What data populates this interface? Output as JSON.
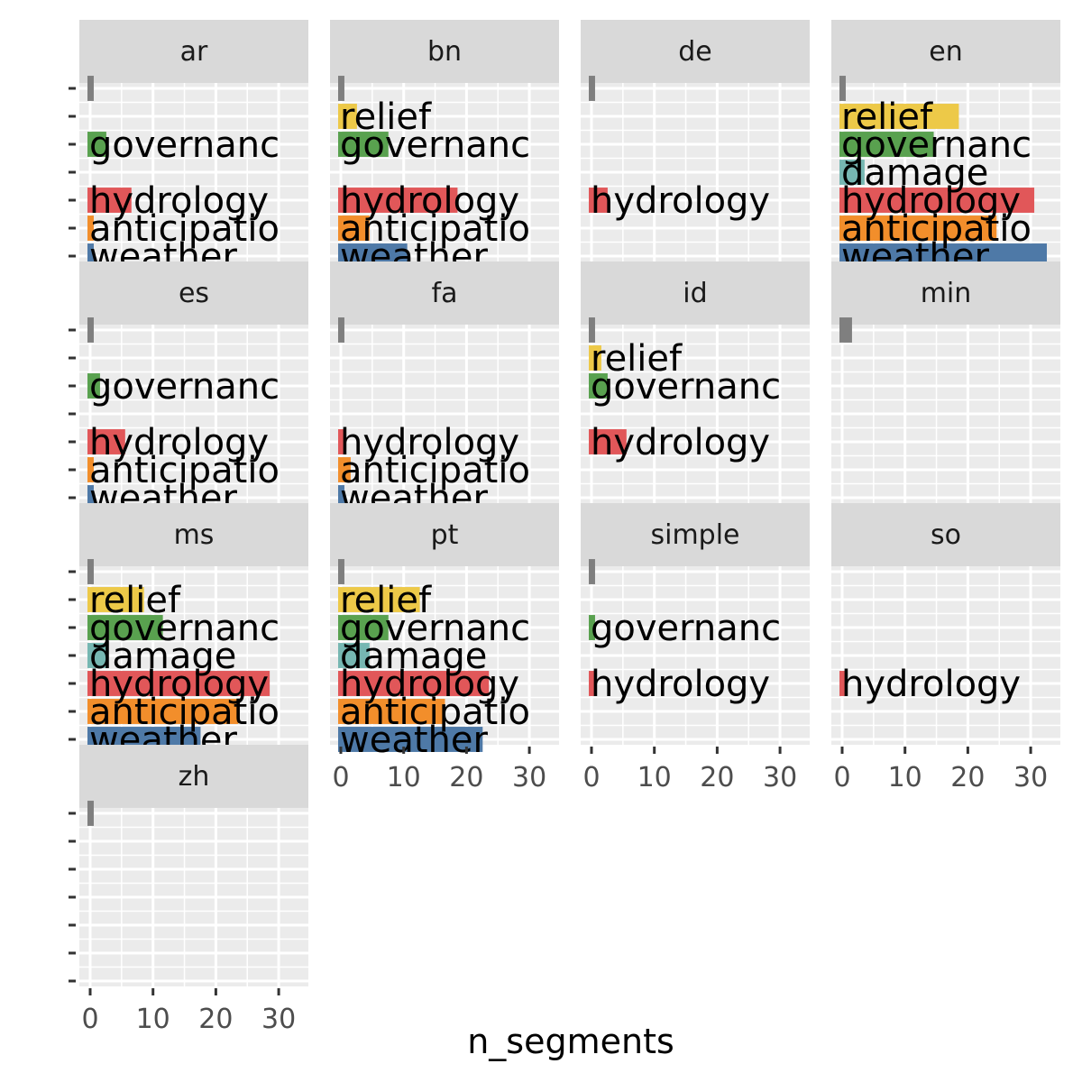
{
  "chart_data": {
    "type": "bar",
    "orientation": "horizontal",
    "facet_wrap": "language",
    "xlabel": "n_segments",
    "ylabel": "",
    "xlim": [
      0,
      35
    ],
    "x_ticks": [
      0,
      10,
      20,
      30
    ],
    "y_levels": [
      "weather",
      "anticipatio",
      "hydrology",
      "damage",
      "governanc",
      "relief",
      "NA"
    ],
    "colors": {
      "weather": "#4e79a7",
      "anticipatio": "#f28e2b",
      "hydrology": "#e15759",
      "damage": "#76b7b2",
      "governanc": "#59a14f",
      "relief": "#edc948",
      "NA": "#7f7f7f"
    },
    "panels": [
      {
        "name": "ar",
        "bars": [
          {
            "category": "NA",
            "value": 1
          },
          {
            "category": "governanc",
            "value": 3
          },
          {
            "category": "hydrology",
            "value": 7
          },
          {
            "category": "anticipatio",
            "value": 1
          },
          {
            "category": "weather",
            "value": 1
          }
        ]
      },
      {
        "name": "bn",
        "bars": [
          {
            "category": "NA",
            "value": 1
          },
          {
            "category": "relief",
            "value": 3
          },
          {
            "category": "governanc",
            "value": 8
          },
          {
            "category": "hydrology",
            "value": 19
          },
          {
            "category": "anticipatio",
            "value": 5
          },
          {
            "category": "weather",
            "value": 11
          }
        ]
      },
      {
        "name": "de",
        "bars": [
          {
            "category": "NA",
            "value": 1
          },
          {
            "category": "hydrology",
            "value": 3
          }
        ]
      },
      {
        "name": "en",
        "bars": [
          {
            "category": "NA",
            "value": 1
          },
          {
            "category": "relief",
            "value": 19
          },
          {
            "category": "governanc",
            "value": 15
          },
          {
            "category": "damage",
            "value": 4
          },
          {
            "category": "hydrology",
            "value": 31
          },
          {
            "category": "anticipatio",
            "value": 25
          },
          {
            "category": "weather",
            "value": 33
          }
        ]
      },
      {
        "name": "es",
        "bars": [
          {
            "category": "NA",
            "value": 1
          },
          {
            "category": "governanc",
            "value": 2
          },
          {
            "category": "hydrology",
            "value": 6
          },
          {
            "category": "anticipatio",
            "value": 1
          },
          {
            "category": "weather",
            "value": 1
          }
        ]
      },
      {
        "name": "fa",
        "bars": [
          {
            "category": "NA",
            "value": 1
          },
          {
            "category": "hydrology",
            "value": 1
          },
          {
            "category": "anticipatio",
            "value": 2
          },
          {
            "category": "weather",
            "value": 1
          }
        ]
      },
      {
        "name": "id",
        "bars": [
          {
            "category": "NA",
            "value": 1
          },
          {
            "category": "relief",
            "value": 2
          },
          {
            "category": "governanc",
            "value": 3
          },
          {
            "category": "hydrology",
            "value": 6
          }
        ]
      },
      {
        "name": "min",
        "bars": [
          {
            "category": "NA",
            "value": 2
          }
        ]
      },
      {
        "name": "ms",
        "bars": [
          {
            "category": "NA",
            "value": 1
          },
          {
            "category": "relief",
            "value": 9
          },
          {
            "category": "governanc",
            "value": 12
          },
          {
            "category": "damage",
            "value": 3
          },
          {
            "category": "hydrology",
            "value": 29
          },
          {
            "category": "anticipatio",
            "value": 24
          },
          {
            "category": "weather",
            "value": 18
          }
        ]
      },
      {
        "name": "pt",
        "bars": [
          {
            "category": "NA",
            "value": 1
          },
          {
            "category": "relief",
            "value": 13
          },
          {
            "category": "governanc",
            "value": 8
          },
          {
            "category": "damage",
            "value": 5
          },
          {
            "category": "hydrology",
            "value": 24
          },
          {
            "category": "anticipatio",
            "value": 17
          },
          {
            "category": "weather",
            "value": 23
          }
        ]
      },
      {
        "name": "simple",
        "bars": [
          {
            "category": "NA",
            "value": 1
          },
          {
            "category": "governanc",
            "value": 1
          },
          {
            "category": "hydrology",
            "value": 1
          }
        ]
      },
      {
        "name": "so",
        "bars": [
          {
            "category": "hydrology",
            "value": 1
          }
        ]
      },
      {
        "name": "zh",
        "bars": [
          {
            "category": "NA",
            "value": 1
          }
        ]
      }
    ]
  }
}
